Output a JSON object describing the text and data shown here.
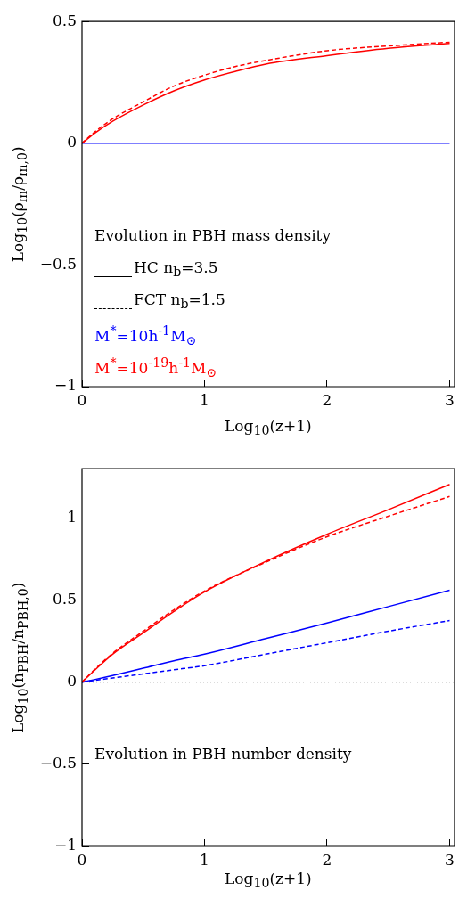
{
  "chart_data": [
    {
      "type": "line",
      "xlabel": "Log$_{10}$(z+1)",
      "ylabel": "Log$_{10}$(ρ$_{m}$/ρ$_{m,0}$)",
      "x": [
        0,
        0.1,
        0.25,
        0.5,
        0.75,
        1,
        1.25,
        1.5,
        2,
        2.5,
        3
      ],
      "xlim": [
        0,
        3.04
      ],
      "ylim": [
        -1,
        0.5
      ],
      "xticks": [
        0,
        1,
        2,
        3
      ],
      "yticks": [
        -1,
        -0.5,
        0,
        0.5
      ],
      "grid": false,
      "legend": false,
      "series": [
        {
          "color": "#ff0000",
          "line_style": "solid",
          "values": [
            0,
            0.04,
            0.09,
            0.157,
            0.215,
            0.26,
            0.295,
            0.325,
            0.36,
            0.39,
            0.41
          ]
        },
        {
          "color": "#ff0000",
          "line_style": "dashed",
          "values": [
            0,
            0.045,
            0.1,
            0.17,
            0.235,
            0.28,
            0.315,
            0.34,
            0.38,
            0.4,
            0.415
          ]
        },
        {
          "color": "#0000ff",
          "line_style": "solid",
          "values": [
            0,
            0,
            0,
            0,
            0,
            0,
            0,
            0,
            0,
            0,
            0
          ]
        }
      ],
      "annotations": [
        "Evolution in PBH mass density",
        "HC n$_{b}$=3.5",
        "FCT n$_{b}$=1.5",
        "M$^{*}$=10h$^{-1}$M$_{⊙}$",
        "M$^{*}$=10$^{-19}$h$^{-1}$M$_{⊙}$"
      ]
    },
    {
      "type": "line",
      "xlabel": "Log$_{10}$(z+1)",
      "ylabel": "Log$_{10}$(n$_{PBH}$/n$_{PBH,0}$)",
      "x": [
        0,
        0.1,
        0.25,
        0.5,
        0.75,
        1,
        1.5,
        2,
        2.5,
        3
      ],
      "xlim": [
        0,
        3.04
      ],
      "ylim": [
        -1,
        1.3
      ],
      "xticks": [
        0,
        1,
        2,
        3
      ],
      "yticks": [
        -1,
        -0.5,
        0,
        0.5,
        1
      ],
      "grid": false,
      "legend": false,
      "series": [
        {
          "color": "#ff0000",
          "line_style": "solid",
          "values": [
            0,
            0.07,
            0.17,
            0.3,
            0.43,
            0.549,
            0.735,
            0.9,
            1.05,
            1.204
          ]
        },
        {
          "color": "#ff0000",
          "line_style": "dashed",
          "values": [
            0,
            0.075,
            0.175,
            0.31,
            0.44,
            0.555,
            0.73,
            0.885,
            1.01,
            1.13
          ]
        },
        {
          "color": "#0000ff",
          "line_style": "solid",
          "values": [
            0,
            0.015,
            0.04,
            0.085,
            0.13,
            0.17,
            0.265,
            0.36,
            0.46,
            0.56
          ]
        },
        {
          "color": "#0000ff",
          "line_style": "dashed",
          "values": [
            0,
            0.01,
            0.025,
            0.05,
            0.075,
            0.1,
            0.17,
            0.24,
            0.31,
            0.375
          ]
        }
      ],
      "ref_lines": [
        {
          "axis": "y",
          "value": 0,
          "color": "#000000",
          "line_style": "dotted"
        }
      ],
      "annotations": [
        "Evolution in PBH number density"
      ]
    }
  ]
}
